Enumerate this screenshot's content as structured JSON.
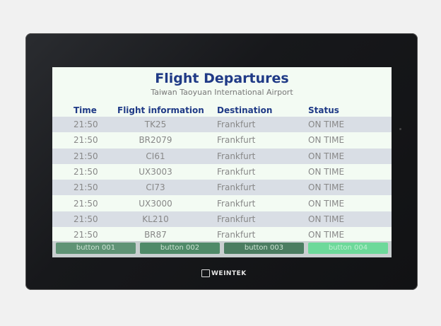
{
  "header": {
    "title": "Flight Departures",
    "subtitle": "Taiwan Taoyuan International Airport"
  },
  "columns": [
    "Time",
    "Flight information",
    "Destination",
    "Status"
  ],
  "rows": [
    [
      "21:50",
      "TK25",
      "Frankfurt",
      "ON TIME"
    ],
    [
      "21:50",
      "BR2079",
      "Frankfurt",
      "ON TIME"
    ],
    [
      "21:50",
      "CI61",
      "Frankfurt",
      "ON TIME"
    ],
    [
      "21:50",
      "UX3003",
      "Frankfurt",
      "ON TIME"
    ],
    [
      "21:50",
      "CI73",
      "Frankfurt",
      "ON TIME"
    ],
    [
      "21:50",
      "UX3000",
      "Frankfurt",
      "ON TIME"
    ],
    [
      "21:50",
      "KL210",
      "Frankfurt",
      "ON TIME"
    ],
    [
      "21:50",
      "BR87",
      "Frankfurt",
      "ON TIME"
    ]
  ],
  "buttons": [
    {
      "label": "button 001",
      "color": "#5f9375"
    },
    {
      "label": "button 002",
      "color": "#4f8a68"
    },
    {
      "label": "button 003",
      "color": "#4b7d61"
    },
    {
      "label": "button 004",
      "color": "#6dd99a"
    }
  ],
  "brand": "WEINTEK"
}
